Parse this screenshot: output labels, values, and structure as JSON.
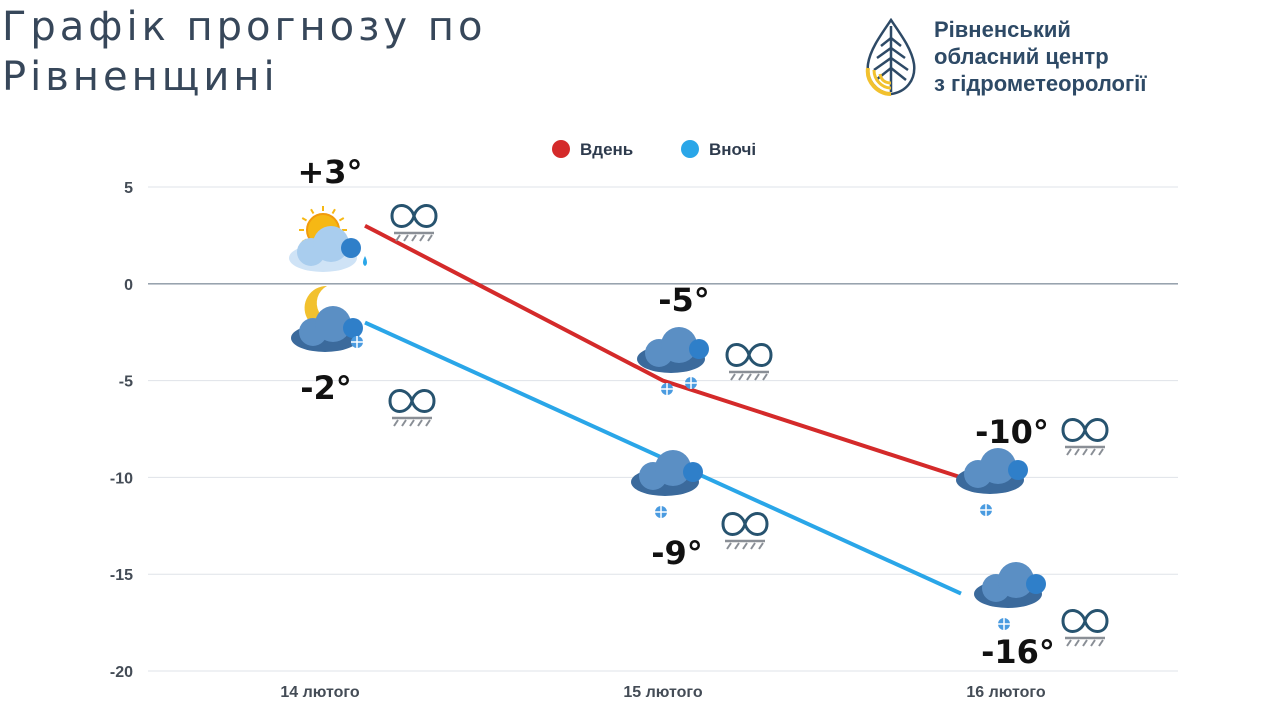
{
  "header": {
    "title_line1": "Графік прогнозу по",
    "title_line2": "Рівненщині"
  },
  "org": {
    "line1": "Рівненський",
    "line2": "обласний центр",
    "line3": "з гідрометеорології",
    "logo_icon": "drop-leaf-logo-icon",
    "colors": {
      "blue": "#2e4a66",
      "yellow": "#f2c12e"
    }
  },
  "chart_data": {
    "type": "line",
    "categories": [
      "14 лютого",
      "15 лютого",
      "16 лютого"
    ],
    "series": [
      {
        "name": "Вдень",
        "color": "#d42a2a",
        "values": [
          3,
          -5,
          -10
        ],
        "labels": [
          "+3°",
          "-5°",
          "-10°"
        ],
        "icons": [
          "partly-sunny-light-rain-icon",
          "cloud-snow-icon",
          "cloud-snow-icon"
        ]
      },
      {
        "name": "Вночі",
        "color": "#2aa6e8",
        "values": [
          -2,
          -9,
          -16
        ],
        "labels": [
          "-2°",
          "-9°",
          "-16°"
        ],
        "icons": [
          "moon-cloud-snow-icon",
          "cloud-snow-icon",
          "cloud-snow-icon"
        ]
      }
    ],
    "ylim": [
      -20,
      5
    ],
    "yticks": [
      5,
      0,
      -5,
      -10,
      -15,
      -20
    ],
    "ytick_labels": [
      "5",
      "0",
      "-5",
      "-10",
      "-15",
      "-20"
    ],
    "grid": true,
    "legend": "top-center",
    "extra_icons": "mist-icon"
  }
}
